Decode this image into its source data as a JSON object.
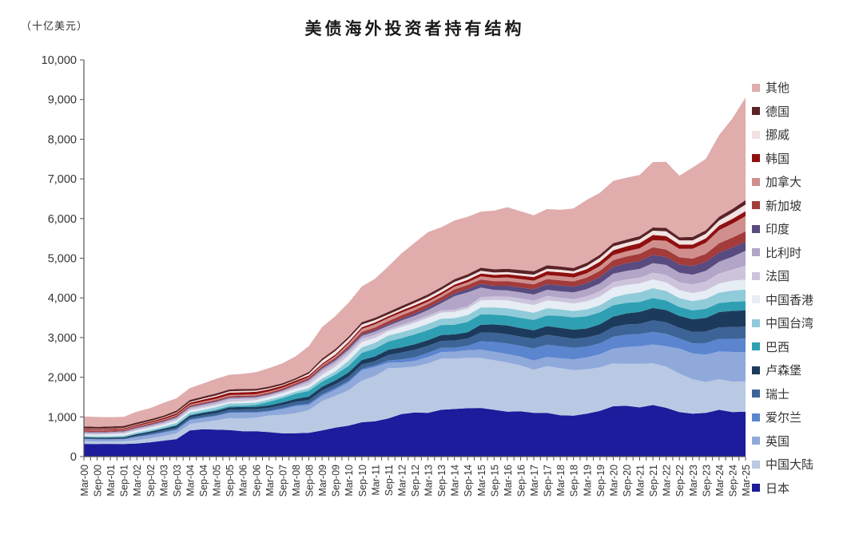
{
  "unit_label": "（十亿美元）",
  "title": "美债海外投资者持有结构",
  "chart_data": {
    "type": "area",
    "stacked": true,
    "title": "美债海外投资者持有结构",
    "ylabel": "（十亿美元）",
    "ylim": [
      0,
      10000
    ],
    "y_ticks": [
      0,
      1000,
      2000,
      3000,
      4000,
      5000,
      6000,
      7000,
      8000,
      9000,
      10000
    ],
    "grid": false,
    "legend_position": "right",
    "legend_order_note": "legend lists top-of-stack first; series below are bottom-to-top",
    "x_labels": [
      "Mar-00",
      "Sep-00",
      "Mar-01",
      "Sep-01",
      "Mar-02",
      "Sep-02",
      "Mar-03",
      "Sep-03",
      "Mar-04",
      "Sep-04",
      "Mar-05",
      "Sep-05",
      "Mar-06",
      "Sep-06",
      "Mar-07",
      "Sep-07",
      "Mar-08",
      "Sep-08",
      "Mar-09",
      "Sep-09",
      "Mar-10",
      "Sep-10",
      "Mar-11",
      "Sep-11",
      "Mar-12",
      "Sep-12",
      "Mar-13",
      "Sep-13",
      "Mar-14",
      "Sep-14",
      "Mar-15",
      "Sep-15",
      "Mar-16",
      "Sep-16",
      "Mar-17",
      "Sep-17",
      "Mar-18",
      "Sep-18",
      "Mar-19",
      "Sep-19",
      "Mar-20",
      "Sep-20",
      "Mar-21",
      "Sep-21",
      "Mar-22",
      "Sep-22",
      "Mar-23",
      "Sep-23",
      "Mar-24",
      "Sep-24",
      "Mar-25"
    ],
    "series": [
      {
        "name": "日本",
        "color": "#1c1c9c",
        "values": [
          320,
          317,
          320,
          318,
          330,
          360,
          400,
          440,
          660,
          690,
          680,
          670,
          640,
          640,
          615,
          585,
          590,
          600,
          660,
          730,
          780,
          865,
          890,
          960,
          1070,
          1110,
          1100,
          1180,
          1200,
          1220,
          1225,
          1180,
          1130,
          1140,
          1100,
          1100,
          1040,
          1030,
          1080,
          1150,
          1270,
          1280,
          1240,
          1300,
          1230,
          1120,
          1080,
          1100,
          1180,
          1120,
          1130
        ]
      },
      {
        "name": "中国大陆",
        "color": "#b9c9e3",
        "values": [
          70,
          62,
          63,
          67,
          80,
          100,
          120,
          145,
          160,
          180,
          230,
          300,
          320,
          340,
          420,
          470,
          500,
          570,
          740,
          800,
          890,
          1050,
          1140,
          1270,
          1170,
          1160,
          1250,
          1290,
          1270,
          1270,
          1260,
          1250,
          1240,
          1160,
          1090,
          1180,
          1190,
          1150,
          1120,
          1100,
          1080,
          1060,
          1100,
          1050,
          1040,
          970,
          870,
          780,
          770,
          770,
          765
        ]
      },
      {
        "name": "英国",
        "color": "#8fa9db",
        "values": [
          50,
          50,
          45,
          45,
          80,
          80,
          82,
          85,
          95,
          100,
          110,
          130,
          140,
          120,
          100,
          140,
          180,
          130,
          130,
          155,
          200,
          260,
          230,
          135,
          135,
          140,
          160,
          160,
          175,
          190,
          210,
          210,
          215,
          220,
          230,
          230,
          250,
          270,
          300,
          330,
          370,
          420,
          440,
          475,
          510,
          630,
          650,
          690,
          700,
          745,
          740
        ]
      },
      {
        "name": "爱尔兰",
        "color": "#5b85cf",
        "values": [
          5,
          5,
          6,
          8,
          10,
          12,
          15,
          15,
          15,
          17,
          15,
          17,
          19,
          20,
          20,
          22,
          25,
          35,
          40,
          40,
          35,
          35,
          35,
          55,
          75,
          90,
          105,
          110,
          100,
          110,
          210,
          250,
          265,
          270,
          300,
          310,
          300,
          290,
          270,
          275,
          300,
          315,
          310,
          320,
          315,
          255,
          255,
          290,
          317,
          330,
          340
        ]
      },
      {
        "name": "瑞士",
        "color": "#3c6497",
        "values": [
          18,
          18,
          18,
          20,
          30,
          35,
          40,
          45,
          50,
          55,
          60,
          65,
          70,
          75,
          75,
          80,
          85,
          90,
          95,
          95,
          105,
          110,
          110,
          140,
          170,
          190,
          175,
          175,
          180,
          185,
          220,
          230,
          235,
          230,
          250,
          250,
          240,
          230,
          230,
          230,
          245,
          255,
          255,
          290,
          290,
          270,
          285,
          290,
          290,
          300,
          300
        ]
      },
      {
        "name": "卢森堡",
        "color": "#1c3b5c",
        "values": [
          25,
          25,
          28,
          30,
          35,
          40,
          45,
          50,
          55,
          58,
          60,
          60,
          60,
          60,
          60,
          65,
          75,
          90,
          95,
          100,
          110,
          115,
          120,
          130,
          135,
          140,
          145,
          150,
          155,
          160,
          200,
          210,
          220,
          220,
          215,
          220,
          225,
          230,
          230,
          250,
          265,
          280,
          300,
          310,
          310,
          300,
          320,
          345,
          385,
          410,
          410
        ]
      },
      {
        "name": "巴西",
        "color": "#2fa0b3",
        "values": [
          3,
          3,
          5,
          5,
          10,
          12,
          15,
          20,
          20,
          20,
          25,
          30,
          35,
          50,
          90,
          110,
          130,
          140,
          130,
          145,
          165,
          180,
          195,
          210,
          230,
          250,
          255,
          250,
          245,
          260,
          260,
          250,
          250,
          255,
          260,
          270,
          300,
          310,
          310,
          300,
          285,
          265,
          255,
          250,
          240,
          225,
          225,
          230,
          230,
          230,
          230
        ]
      },
      {
        "name": "中国台湾",
        "color": "#90cbd9",
        "values": [
          33,
          33,
          35,
          35,
          37,
          37,
          40,
          50,
          55,
          57,
          68,
          68,
          63,
          60,
          58,
          55,
          55,
          70,
          78,
          80,
          130,
          140,
          150,
          150,
          150,
          150,
          155,
          160,
          165,
          170,
          175,
          180,
          185,
          190,
          180,
          180,
          165,
          160,
          170,
          180,
          200,
          220,
          240,
          250,
          240,
          225,
          235,
          250,
          260,
          280,
          295
        ]
      },
      {
        "name": "中国香港",
        "color": "#e6edf4",
        "values": [
          39,
          40,
          45,
          48,
          48,
          50,
          50,
          55,
          52,
          50,
          45,
          45,
          50,
          55,
          60,
          65,
          70,
          75,
          95,
          120,
          135,
          135,
          120,
          110,
          135,
          140,
          150,
          155,
          160,
          165,
          180,
          190,
          200,
          190,
          195,
          195,
          195,
          190,
          205,
          220,
          245,
          230,
          225,
          220,
          215,
          200,
          200,
          210,
          230,
          250,
          250
        ]
      },
      {
        "name": "法国",
        "color": "#cdc4dc",
        "values": [
          25,
          25,
          25,
          28,
          30,
          35,
          35,
          40,
          40,
          45,
          50,
          55,
          55,
          45,
          40,
          40,
          50,
          80,
          90,
          90,
          85,
          80,
          80,
          50,
          55,
          60,
          60,
          55,
          55,
          60,
          80,
          90,
          95,
          115,
          110,
          115,
          100,
          110,
          125,
          130,
          140,
          140,
          145,
          170,
          190,
          200,
          220,
          230,
          250,
          280,
          350
        ]
      },
      {
        "name": "比利时",
        "color": "#b2a5c8",
        "values": [
          30,
          30,
          30,
          30,
          30,
          32,
          35,
          40,
          40,
          42,
          40,
          38,
          35,
          33,
          30,
          30,
          35,
          50,
          60,
          65,
          70,
          75,
          80,
          90,
          105,
          120,
          140,
          180,
          340,
          350,
          240,
          160,
          155,
          150,
          155,
          155,
          160,
          170,
          180,
          200,
          210,
          215,
          220,
          240,
          250,
          240,
          245,
          265,
          300,
          320,
          380
        ]
      },
      {
        "name": "印度",
        "color": "#584b80",
        "values": [
          10,
          10,
          10,
          10,
          12,
          13,
          15,
          15,
          15,
          15,
          15,
          15,
          15,
          15,
          15,
          15,
          15,
          15,
          25,
          30,
          35,
          38,
          40,
          40,
          45,
          55,
          60,
          60,
          70,
          80,
          95,
          105,
          115,
          120,
          130,
          140,
          150,
          140,
          150,
          160,
          175,
          195,
          200,
          210,
          200,
          210,
          220,
          230,
          235,
          235,
          230
        ]
      },
      {
        "name": "新加坡",
        "color": "#a33b3b",
        "values": [
          28,
          28,
          28,
          28,
          28,
          28,
          28,
          30,
          30,
          30,
          30,
          30,
          30,
          30,
          30,
          35,
          40,
          40,
          40,
          42,
          50,
          60,
          65,
          75,
          85,
          90,
          90,
          95,
          100,
          105,
          110,
          115,
          120,
          125,
          125,
          130,
          130,
          135,
          145,
          160,
          165,
          170,
          180,
          190,
          190,
          180,
          185,
          200,
          230,
          250,
          260
        ]
      },
      {
        "name": "加拿大",
        "color": "#d08f8d",
        "values": [
          15,
          15,
          15,
          15,
          15,
          16,
          18,
          22,
          25,
          28,
          28,
          28,
          28,
          28,
          28,
          25,
          20,
          20,
          30,
          40,
          60,
          75,
          80,
          75,
          70,
          65,
          60,
          60,
          65,
          70,
          80,
          85,
          90,
          90,
          95,
          100,
          105,
          100,
          105,
          120,
          130,
          130,
          140,
          180,
          220,
          210,
          250,
          280,
          330,
          350,
          380
        ]
      },
      {
        "name": "韩国",
        "color": "#900f10",
        "values": [
          25,
          25,
          25,
          25,
          28,
          30,
          35,
          40,
          45,
          50,
          55,
          60,
          60,
          60,
          55,
          50,
          45,
          40,
          35,
          38,
          40,
          42,
          45,
          48,
          50,
          55,
          55,
          55,
          55,
          60,
          70,
          75,
          80,
          85,
          90,
          95,
          95,
          100,
          105,
          110,
          120,
          125,
          130,
          130,
          120,
          110,
          105,
          110,
          115,
          120,
          125
        ]
      },
      {
        "name": "挪威",
        "color": "#f2e2e2",
        "values": [
          12,
          12,
          12,
          12,
          12,
          14,
          15,
          18,
          20,
          25,
          30,
          32,
          35,
          30,
          25,
          20,
          20,
          45,
          80,
          90,
          80,
          70,
          60,
          45,
          50,
          60,
          65,
          70,
          70,
          70,
          70,
          60,
          55,
          55,
          60,
          65,
          65,
          60,
          80,
          95,
          100,
          90,
          95,
          110,
          120,
          105,
          105,
          115,
          130,
          150,
          170
        ]
      },
      {
        "name": "德国",
        "color": "#5a2326",
        "values": [
          50,
          50,
          48,
          48,
          45,
          45,
          45,
          48,
          50,
          50,
          50,
          50,
          50,
          48,
          45,
          42,
          42,
          45,
          50,
          50,
          55,
          58,
          60,
          62,
          65,
          65,
          65,
          65,
          65,
          70,
          75,
          80,
          85,
          90,
          90,
          85,
          80,
          80,
          80,
          80,
          80,
          80,
          80,
          80,
          85,
          80,
          85,
          90,
          95,
          100,
          110
        ]
      },
      {
        "name": "其他",
        "color": "#e0acac",
        "values": [
          255,
          250,
          235,
          230,
          270,
          280,
          320,
          310,
          300,
          330,
          370,
          370,
          380,
          420,
          465,
          500,
          550,
          650,
          790,
          830,
          855,
          900,
          980,
          1150,
          1325,
          1450,
          1570,
          1510,
          1480,
          1450,
          1415,
          1480,
          1550,
          1480,
          1405,
          1420,
          1430,
          1500,
          1585,
          1560,
          1570,
          1560,
          1545,
          1650,
          1665,
          1550,
          1750,
          1800,
          2055,
          2280,
          2585
        ]
      }
    ]
  }
}
